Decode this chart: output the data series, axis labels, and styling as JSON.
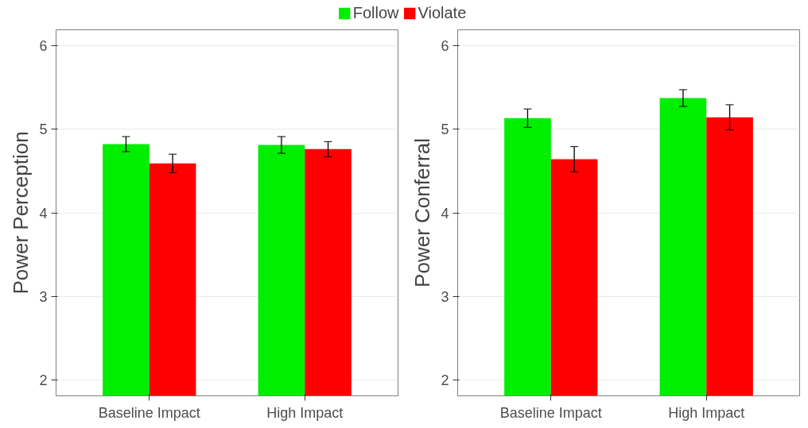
{
  "chart_data": [
    {
      "type": "bar",
      "ylabel": "Power Perception",
      "categories": [
        "Baseline Impact",
        "High Impact"
      ],
      "legend": "top",
      "grid": "y",
      "ylim": [
        1.815,
        6.185
      ],
      "yticks": [
        2,
        3,
        4,
        5,
        6
      ],
      "series": [
        {
          "name": "Follow",
          "color": "#00ee00",
          "values": [
            4.82,
            4.81
          ],
          "errors": [
            0.09,
            0.1
          ]
        },
        {
          "name": "Violate",
          "color": "#ff0000",
          "values": [
            4.59,
            4.76
          ],
          "errors": [
            0.11,
            0.09
          ]
        }
      ]
    },
    {
      "type": "bar",
      "ylabel": "Power Conferral",
      "categories": [
        "Baseline Impact",
        "High Impact"
      ],
      "legend": false,
      "grid": "y",
      "ylim": [
        1.815,
        6.185
      ],
      "yticks": [
        2,
        3,
        4,
        5,
        6
      ],
      "series": [
        {
          "color": "#00ee00",
          "values": [
            5.13,
            5.37
          ],
          "errors": [
            0.11,
            0.1
          ]
        },
        {
          "color": "#ff0000",
          "values": [
            4.64,
            5.14
          ],
          "errors": [
            0.15,
            0.15
          ]
        }
      ]
    }
  ]
}
